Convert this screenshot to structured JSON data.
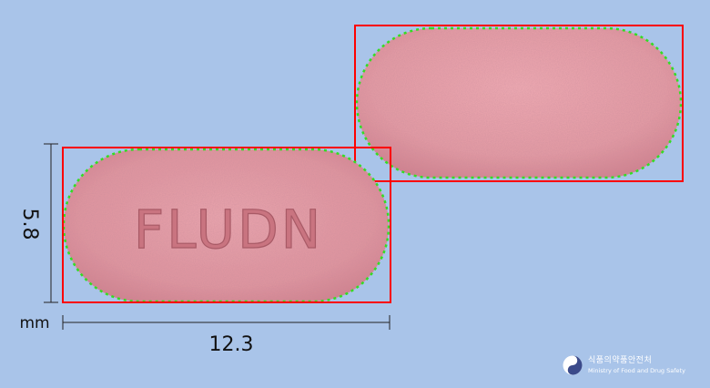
{
  "measurements": {
    "unit": "mm",
    "length": "12.3",
    "width": "5.8"
  },
  "front": {
    "imprint": "FLUDN"
  },
  "pill_color": "#e0959f",
  "box_color": "#ff0000",
  "contour_color": "#33dd22",
  "logo": {
    "korean_text": "식품의약품안전처",
    "english_text": "Ministry of Food and Drug Safety"
  }
}
